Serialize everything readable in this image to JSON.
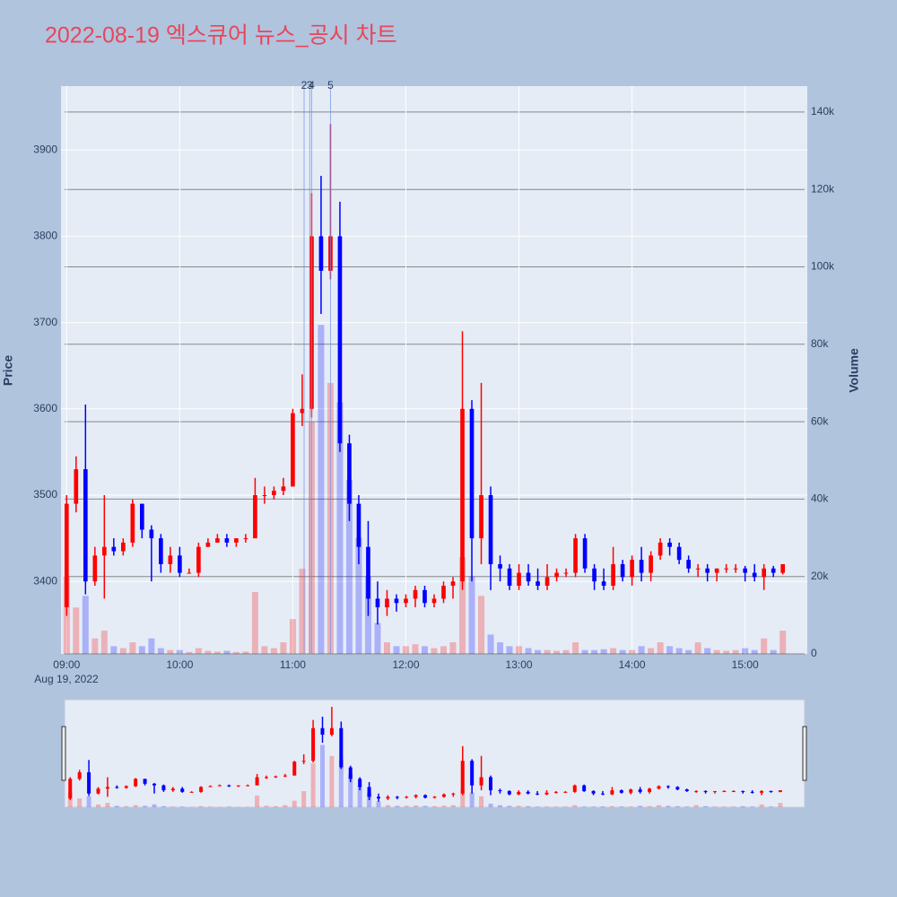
{
  "chart_data": {
    "type": "candlestick",
    "title": "2022-08-19 엑스큐어 뉴스_공시 차트",
    "y_label": "Price",
    "y2_label": "Volume",
    "x_date_label": "Aug 19, 2022",
    "increasing_color": "#ff0000",
    "decreasing_color": "#0000ff",
    "x": [
      "09:00",
      "09:05",
      "09:10",
      "09:15",
      "09:20",
      "09:25",
      "09:30",
      "09:35",
      "09:40",
      "09:45",
      "09:50",
      "09:55",
      "10:00",
      "10:05",
      "10:10",
      "10:15",
      "10:20",
      "10:25",
      "10:30",
      "10:35",
      "10:40",
      "10:45",
      "10:50",
      "10:55",
      "11:00",
      "11:05",
      "11:10",
      "11:15",
      "11:20",
      "11:25",
      "11:30",
      "11:35",
      "11:40",
      "11:45",
      "11:50",
      "11:55",
      "12:00",
      "12:05",
      "12:10",
      "12:15",
      "12:20",
      "12:25",
      "12:30",
      "12:35",
      "12:40",
      "12:45",
      "12:50",
      "12:55",
      "13:00",
      "13:05",
      "13:10",
      "13:15",
      "13:20",
      "13:25",
      "13:30",
      "13:35",
      "13:40",
      "13:45",
      "13:50",
      "13:55",
      "14:00",
      "14:05",
      "14:10",
      "14:15",
      "14:20",
      "14:25",
      "14:30",
      "14:35",
      "14:40",
      "14:45",
      "14:50",
      "14:55",
      "15:00",
      "15:05",
      "15:10",
      "15:15",
      "15:20"
    ],
    "open": [
      3370,
      3490,
      3530,
      3400,
      3430,
      3440,
      3435,
      3445,
      3490,
      3460,
      3450,
      3420,
      3430,
      3410,
      3410,
      3440,
      3445,
      3450,
      3445,
      3450,
      3450,
      3500,
      3500,
      3505,
      3510,
      3595,
      3600,
      3800,
      3760,
      3800,
      3560,
      3490,
      3440,
      3380,
      3370,
      3380,
      3375,
      3380,
      3390,
      3375,
      3380,
      3395,
      3400,
      3600,
      3450,
      3500,
      3420,
      3415,
      3395,
      3410,
      3400,
      3395,
      3405,
      3410,
      3410,
      3450,
      3415,
      3400,
      3395,
      3420,
      3405,
      3425,
      3410,
      3430,
      3445,
      3440,
      3425,
      3415,
      3415,
      3410,
      3415,
      3415,
      3415,
      3410,
      3405,
      3415,
      3410
    ],
    "high": [
      3500,
      3545,
      3605,
      3440,
      3500,
      3450,
      3450,
      3495,
      3490,
      3465,
      3455,
      3440,
      3440,
      3415,
      3445,
      3450,
      3455,
      3455,
      3450,
      3455,
      3520,
      3510,
      3510,
      3520,
      3600,
      3640,
      3850,
      3870,
      3930,
      3840,
      3570,
      3500,
      3470,
      3400,
      3390,
      3385,
      3385,
      3395,
      3395,
      3385,
      3400,
      3405,
      3690,
      3610,
      3630,
      3510,
      3430,
      3420,
      3420,
      3420,
      3415,
      3420,
      3415,
      3415,
      3455,
      3455,
      3420,
      3415,
      3440,
      3425,
      3430,
      3440,
      3435,
      3450,
      3450,
      3445,
      3430,
      3420,
      3420,
      3415,
      3420,
      3420,
      3418,
      3420,
      3420,
      3418,
      3420
    ],
    "low": [
      3360,
      3480,
      3385,
      3395,
      3380,
      3430,
      3430,
      3440,
      3450,
      3400,
      3410,
      3410,
      3405,
      3410,
      3405,
      3440,
      3445,
      3440,
      3440,
      3445,
      3450,
      3490,
      3495,
      3500,
      3510,
      3580,
      3590,
      3710,
      3750,
      3550,
      3470,
      3420,
      3360,
      3350,
      3360,
      3365,
      3370,
      3370,
      3370,
      3370,
      3375,
      3380,
      3390,
      3400,
      3420,
      3390,
      3400,
      3390,
      3390,
      3395,
      3390,
      3390,
      3400,
      3405,
      3405,
      3410,
      3390,
      3390,
      3390,
      3400,
      3395,
      3400,
      3400,
      3425,
      3430,
      3420,
      3410,
      3405,
      3400,
      3400,
      3410,
      3410,
      3400,
      3400,
      3390,
      3405,
      3408
    ],
    "close": [
      3490,
      3530,
      3400,
      3430,
      3440,
      3435,
      3445,
      3490,
      3460,
      3450,
      3420,
      3430,
      3410,
      3410,
      3440,
      3445,
      3450,
      3445,
      3450,
      3450,
      3500,
      3500,
      3505,
      3510,
      3595,
      3600,
      3800,
      3760,
      3800,
      3560,
      3490,
      3440,
      3380,
      3370,
      3380,
      3375,
      3380,
      3390,
      3375,
      3380,
      3395,
      3400,
      3600,
      3450,
      3500,
      3420,
      3415,
      3395,
      3410,
      3400,
      3395,
      3405,
      3410,
      3410,
      3450,
      3415,
      3400,
      3395,
      3420,
      3405,
      3425,
      3410,
      3430,
      3445,
      3440,
      3425,
      3415,
      3415,
      3410,
      3415,
      3415,
      3415,
      3410,
      3405,
      3415,
      3410,
      3420
    ],
    "volume": [
      20000,
      12000,
      15000,
      4000,
      6000,
      2000,
      1500,
      3000,
      2000,
      4000,
      1500,
      1000,
      1000,
      500,
      1500,
      800,
      600,
      800,
      500,
      600,
      16000,
      2000,
      1500,
      3000,
      9000,
      22000,
      60000,
      85000,
      70000,
      65000,
      45000,
      30000,
      20000,
      8000,
      3000,
      2000,
      2000,
      2500,
      2000,
      1500,
      2000,
      3000,
      25000,
      20000,
      15000,
      5000,
      3000,
      2000,
      2000,
      1500,
      1000,
      1000,
      800,
      1000,
      3000,
      1000,
      1000,
      1200,
      1500,
      1000,
      1000,
      2000,
      1500,
      3000,
      2000,
      1500,
      1000,
      3000,
      1500,
      1000,
      800,
      1000,
      1500,
      1000,
      4000,
      1000,
      6000
    ],
    "xlim": [
      "08:57",
      "15:33"
    ],
    "xticks": [
      "09:00",
      "10:00",
      "11:00",
      "12:00",
      "13:00",
      "14:00",
      "15:00"
    ],
    "ylim": [
      3316,
      3974
    ],
    "yticks": [
      3400,
      3500,
      3600,
      3700,
      3800,
      3900
    ],
    "y2lim": [
      0,
      146700
    ],
    "y2ticks": [
      {
        "value": 0,
        "label": "0"
      },
      {
        "value": 20000,
        "label": "20k"
      },
      {
        "value": 40000,
        "label": "40k"
      },
      {
        "value": 60000,
        "label": "60k"
      },
      {
        "value": 80000,
        "label": "80k"
      },
      {
        "value": 100000,
        "label": "100k"
      },
      {
        "value": 120000,
        "label": "120k"
      },
      {
        "value": 140000,
        "label": "140k"
      }
    ],
    "annotations": [
      {
        "x": "11:06",
        "label": "2"
      },
      {
        "x": "11:09",
        "label": "3"
      },
      {
        "x": "11:10",
        "label": "4"
      },
      {
        "x": "11:20",
        "label": "5"
      }
    ],
    "grid": true,
    "range_slider": true
  }
}
